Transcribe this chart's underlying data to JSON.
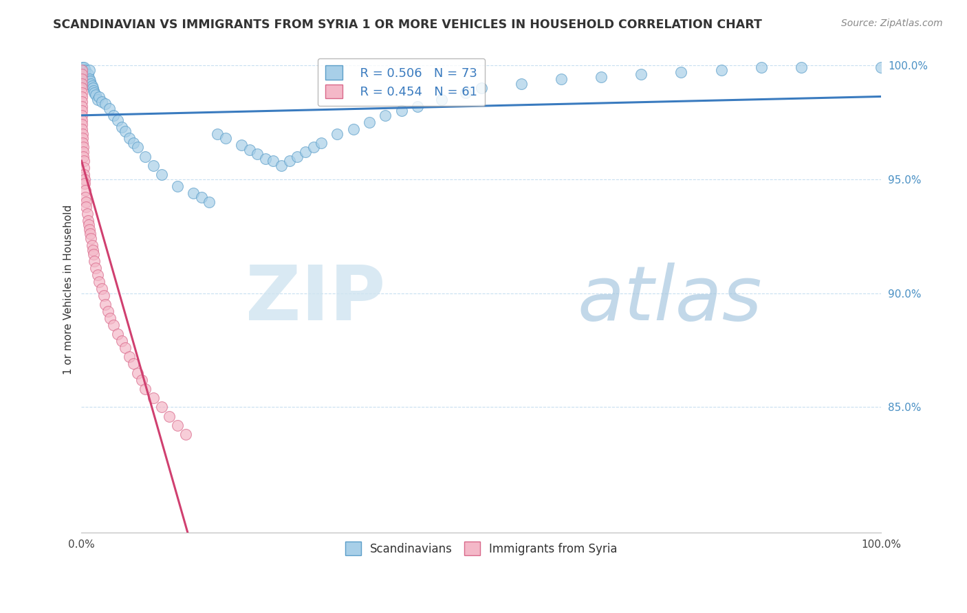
{
  "title": "SCANDINAVIAN VS IMMIGRANTS FROM SYRIA 1 OR MORE VEHICLES IN HOUSEHOLD CORRELATION CHART",
  "source": "Source: ZipAtlas.com",
  "ylabel": "1 or more Vehicles in Household",
  "xlim": [
    0,
    1.0
  ],
  "ylim": [
    0.795,
    1.008
  ],
  "ytick_positions": [
    0.85,
    0.9,
    0.95,
    1.0
  ],
  "ytick_labels": [
    "85.0%",
    "90.0%",
    "95.0%",
    "100.0%"
  ],
  "legend_r_blue": "R = 0.506",
  "legend_n_blue": "N = 73",
  "legend_r_pink": "R = 0.454",
  "legend_n_pink": "N = 61",
  "blue_color": "#a8cfe8",
  "pink_color": "#f4b8c8",
  "blue_edge_color": "#5b9ec9",
  "pink_edge_color": "#d9688a",
  "blue_line_color": "#3a7bbf",
  "pink_line_color": "#d04070",
  "watermark_zip": "ZIP",
  "watermark_atlas": "atlas",
  "scandinavian_x": [
    0.001,
    0.001,
    0.002,
    0.002,
    0.003,
    0.003,
    0.004,
    0.005,
    0.005,
    0.006,
    0.007,
    0.008,
    0.008,
    0.009,
    0.01,
    0.01,
    0.011,
    0.012,
    0.013,
    0.014,
    0.015,
    0.016,
    0.018,
    0.02,
    0.022,
    0.025,
    0.03,
    0.035,
    0.04,
    0.045,
    0.05,
    0.055,
    0.06,
    0.065,
    0.07,
    0.08,
    0.09,
    0.1,
    0.12,
    0.14,
    0.15,
    0.16,
    0.17,
    0.18,
    0.2,
    0.21,
    0.22,
    0.23,
    0.24,
    0.25,
    0.26,
    0.27,
    0.28,
    0.29,
    0.3,
    0.32,
    0.34,
    0.36,
    0.38,
    0.4,
    0.42,
    0.45,
    0.48,
    0.5,
    0.55,
    0.6,
    0.65,
    0.7,
    0.75,
    0.8,
    0.85,
    0.9,
    1.0
  ],
  "scandinavian_y": [
    0.999,
    0.997,
    0.998,
    0.996,
    0.999,
    0.995,
    0.997,
    0.996,
    0.998,
    0.995,
    0.994,
    0.996,
    0.993,
    0.992,
    0.998,
    0.994,
    0.993,
    0.992,
    0.991,
    0.99,
    0.989,
    0.988,
    0.987,
    0.985,
    0.986,
    0.984,
    0.983,
    0.981,
    0.978,
    0.976,
    0.973,
    0.971,
    0.968,
    0.966,
    0.964,
    0.96,
    0.956,
    0.952,
    0.947,
    0.944,
    0.942,
    0.94,
    0.97,
    0.968,
    0.965,
    0.963,
    0.961,
    0.959,
    0.958,
    0.956,
    0.958,
    0.96,
    0.962,
    0.964,
    0.966,
    0.97,
    0.972,
    0.975,
    0.978,
    0.98,
    0.982,
    0.985,
    0.988,
    0.99,
    0.992,
    0.994,
    0.995,
    0.996,
    0.997,
    0.998,
    0.999,
    0.999,
    0.999
  ],
  "syria_x": [
    0.0002,
    0.0003,
    0.0004,
    0.0004,
    0.0005,
    0.0005,
    0.0006,
    0.0006,
    0.0007,
    0.0007,
    0.0008,
    0.0008,
    0.0009,
    0.0009,
    0.001,
    0.001,
    0.001,
    0.002,
    0.002,
    0.002,
    0.003,
    0.003,
    0.003,
    0.004,
    0.004,
    0.005,
    0.005,
    0.006,
    0.006,
    0.007,
    0.008,
    0.009,
    0.01,
    0.011,
    0.012,
    0.013,
    0.014,
    0.015,
    0.016,
    0.018,
    0.02,
    0.022,
    0.025,
    0.028,
    0.03,
    0.033,
    0.036,
    0.04,
    0.045,
    0.05,
    0.055,
    0.06,
    0.065,
    0.07,
    0.075,
    0.08,
    0.09,
    0.1,
    0.11,
    0.12,
    0.13
  ],
  "syria_y": [
    0.998,
    0.996,
    0.994,
    0.992,
    0.99,
    0.988,
    0.986,
    0.984,
    0.982,
    0.98,
    0.978,
    0.976,
    0.974,
    0.972,
    0.97,
    0.968,
    0.966,
    0.964,
    0.962,
    0.96,
    0.958,
    0.955,
    0.952,
    0.95,
    0.948,
    0.945,
    0.942,
    0.94,
    0.938,
    0.935,
    0.932,
    0.93,
    0.928,
    0.926,
    0.924,
    0.921,
    0.919,
    0.917,
    0.914,
    0.911,
    0.908,
    0.905,
    0.902,
    0.899,
    0.895,
    0.892,
    0.889,
    0.886,
    0.882,
    0.879,
    0.876,
    0.872,
    0.869,
    0.865,
    0.862,
    0.858,
    0.854,
    0.85,
    0.846,
    0.842,
    0.838
  ]
}
